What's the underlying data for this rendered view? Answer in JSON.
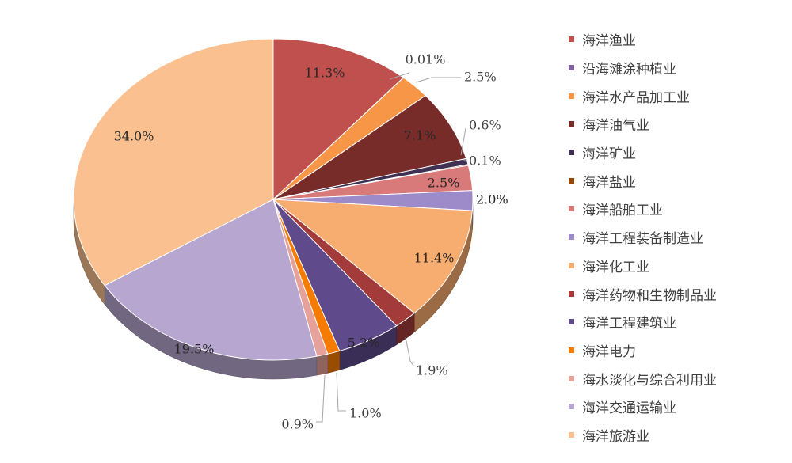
{
  "chart_data": {
    "type": "pie",
    "title": "",
    "categories": [
      "海洋渔业",
      "沿海滩涂种植业",
      "海洋水产品加工业",
      "海洋油气业",
      "海洋矿业",
      "海洋盐业",
      "海洋船舶工业",
      "海洋工程装备制造业",
      "海洋化工业",
      "海洋药物和生物制品业",
      "海洋工程建筑业",
      "海洋电力",
      "海水淡化与综合利用业",
      "海洋交通运输业",
      "海洋旅游业"
    ],
    "values": [
      11.3,
      0.01,
      2.5,
      7.1,
      0.6,
      0.1,
      2.5,
      2.0,
      11.4,
      1.9,
      5.2,
      1.0,
      0.9,
      19.5,
      34.0
    ],
    "value_labels": [
      "11.3%",
      "0.01%",
      "2.5%",
      "7.1%",
      "0.6%",
      "0.1%",
      "2.5%",
      "2.0%",
      "11.4%",
      "1.9%",
      "5.2%",
      "1.0%",
      "0.9%",
      "19.5%",
      "34.0%"
    ],
    "colors": [
      "#c0504d",
      "#8064a2",
      "#f79646",
      "#772c2a",
      "#3f3151",
      "#984807",
      "#d8797a",
      "#9c8ac9",
      "#f8ad70",
      "#a33b3b",
      "#5f4a8b",
      "#f57c00",
      "#e6a29a",
      "#b7a6d0",
      "#fac090"
    ],
    "legend_position": "right",
    "style": "3d"
  }
}
